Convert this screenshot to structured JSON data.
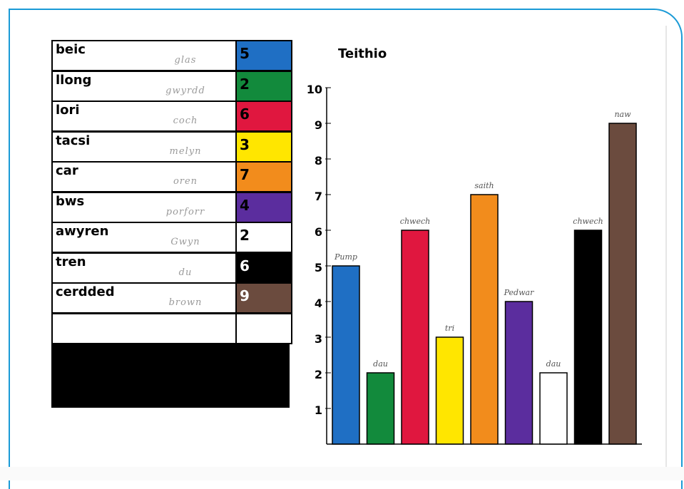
{
  "table": {
    "rows": [
      {
        "word": "beic",
        "colour_name": "glas",
        "number": "5",
        "color": "#1f6fc4",
        "num_color": "#000000"
      },
      {
        "word": "llong",
        "colour_name": "gwyrdd",
        "number": "2",
        "color": "#128a3c",
        "num_color": "#000000"
      },
      {
        "word": "lori",
        "colour_name": "coch",
        "number": "6",
        "color": "#e0173f",
        "num_color": "#000000"
      },
      {
        "word": "tacsi",
        "colour_name": "melyn",
        "number": "3",
        "color": "#ffe600",
        "num_color": "#000000"
      },
      {
        "word": "car",
        "colour_name": "oren",
        "number": "7",
        "color": "#f28c1c",
        "num_color": "#000000"
      },
      {
        "word": "bws",
        "colour_name": "porforr",
        "number": "4",
        "color": "#5b2d9e",
        "num_color": "#000000"
      },
      {
        "word": "awyren",
        "colour_name": "Gwyn",
        "number": "2",
        "color": "#ffffff",
        "num_color": "#000000"
      },
      {
        "word": "tren",
        "colour_name": "du",
        "number": "6",
        "color": "#000000",
        "num_color": "#ffffff"
      },
      {
        "word": "cerdded",
        "colour_name": "brown",
        "number": "9",
        "color": "#6b4b3e",
        "num_color": "#ffffff"
      },
      {
        "word": "",
        "colour_name": "",
        "number": "",
        "color": "#ffffff",
        "num_color": "#000000"
      }
    ]
  },
  "chart_data": {
    "type": "bar",
    "title": "Teithio",
    "ylim": [
      0,
      10
    ],
    "yticks": [
      "1",
      "2",
      "3",
      "4",
      "5",
      "6",
      "7",
      "8",
      "9",
      "10"
    ],
    "bars": [
      {
        "value": 5,
        "label": "Pump",
        "color": "#1f6fc4"
      },
      {
        "value": 2,
        "label": "dau",
        "color": "#128a3c"
      },
      {
        "value": 6,
        "label": "chwech",
        "color": "#e0173f"
      },
      {
        "value": 3,
        "label": "tri",
        "color": "#ffe600"
      },
      {
        "value": 7,
        "label": "saith",
        "color": "#f28c1c"
      },
      {
        "value": 4,
        "label": "Pedwar",
        "color": "#5b2d9e"
      },
      {
        "value": 2,
        "label": "dau",
        "color": "#ffffff"
      },
      {
        "value": 6,
        "label": "chwech",
        "color": "#000000"
      },
      {
        "value": 9,
        "label": "naw",
        "color": "#6b4b3e"
      }
    ]
  }
}
